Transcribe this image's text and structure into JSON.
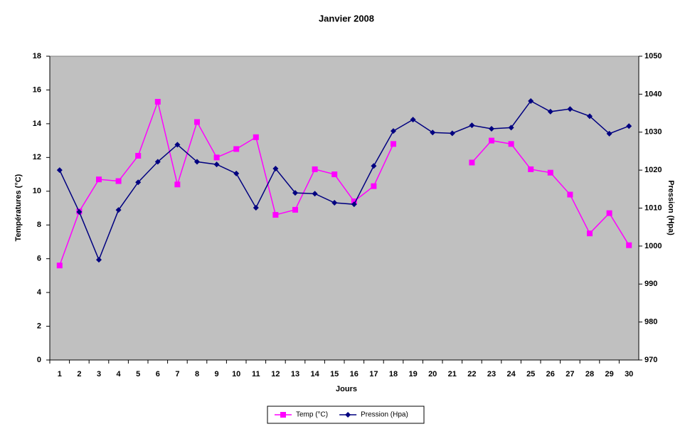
{
  "chart_data": {
    "type": "line",
    "title": "Janvier 2008",
    "x_label": "Jours",
    "y_label": "Températures (°C)",
    "y2_label": "Pression (Hpa)",
    "categories": [
      "1",
      "2",
      "3",
      "4",
      "5",
      "6",
      "7",
      "8",
      "9",
      "10",
      "11",
      "12",
      "13",
      "14",
      "15",
      "16",
      "17",
      "18",
      "19",
      "20",
      "21",
      "22",
      "23",
      "24",
      "25",
      "26",
      "27",
      "28",
      "29",
      "30"
    ],
    "series": [
      {
        "name": "Temp (°C)",
        "color": "#ff00ff",
        "marker": "square",
        "values": [
          5.6,
          8.8,
          10.7,
          10.6,
          12.1,
          15.3,
          10.4,
          14.1,
          12.0,
          12.5,
          13.2,
          8.6,
          8.9,
          11.3,
          11.0,
          9.4,
          10.3,
          12.8,
          null,
          null,
          null,
          11.7,
          13.0,
          12.8,
          11.3,
          11.1,
          9.8,
          7.5,
          8.7,
          6.8
        ]
      },
      {
        "name": "Pression (Hpa)",
        "color": "#000080",
        "marker": "diamond",
        "axis": "y2",
        "values": [
          1020.0,
          1009.0,
          996.4,
          1009.5,
          1016.8,
          1022.2,
          1026.7,
          1022.2,
          1021.5,
          1019.1,
          1010.1,
          1020.4,
          1014.0,
          1013.8,
          1011.4,
          1011.0,
          1021.1,
          1030.3,
          1033.3,
          1029.9,
          1029.7,
          1031.8,
          1030.9,
          1031.2,
          1038.2,
          1035.4,
          1036.1,
          1034.2,
          1029.6,
          1031.6
        ]
      }
    ],
    "ylim": [
      0,
      18
    ],
    "yticks": [
      0,
      2,
      4,
      6,
      8,
      10,
      12,
      14,
      16,
      18
    ],
    "y2lim": [
      970,
      1050
    ],
    "y2ticks": [
      970,
      980,
      990,
      1000,
      1010,
      1020,
      1030,
      1040,
      1050
    ],
    "plot_background": "#c0c0c0",
    "legend": "bottom"
  }
}
